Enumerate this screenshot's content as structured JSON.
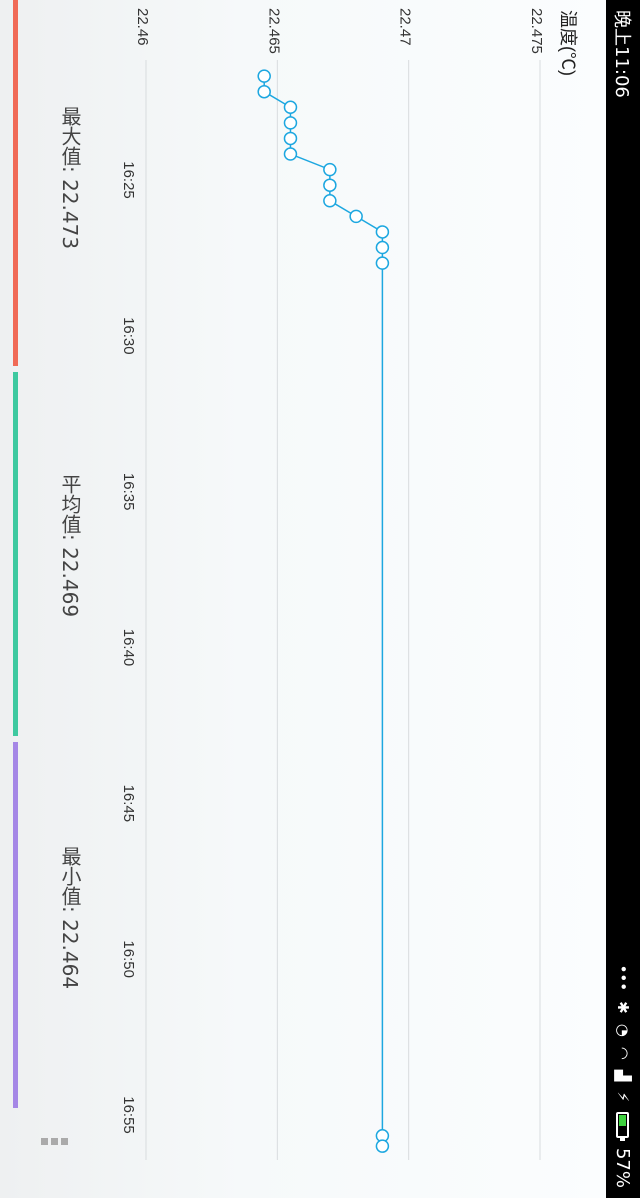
{
  "status_bar": {
    "time": "晚上11:06",
    "battery": "57%",
    "battery_level": 0.57,
    "icons": [
      "more-dots-icon",
      "bluetooth-icon",
      "alarm-icon",
      "wifi-icon",
      "signal-icon",
      "charging-icon"
    ]
  },
  "chart_data": {
    "type": "line",
    "ylabel": "温度(℃)",
    "y_ticks": [
      "22.475",
      "22.47",
      "22.465",
      "22.46"
    ],
    "ylim": [
      22.46,
      22.475
    ],
    "x_ticks": [
      "16:25",
      "16:30",
      "16:35",
      "16:40",
      "16:45",
      "16:50",
      "16:55"
    ],
    "xlim_minutes": [
      "16:21",
      "16:56"
    ],
    "series": [
      {
        "x": [
          "16:21:40",
          "16:22:10",
          "16:22:40",
          "16:23:10",
          "16:23:40",
          "16:24:10",
          "16:24:40",
          "16:25:10",
          "16:25:40",
          "16:26:10",
          "16:26:40",
          "16:27:10",
          "16:27:40",
          "16:55:40",
          "16:56:00"
        ],
        "values": [
          22.4645,
          22.4645,
          22.4655,
          22.4655,
          22.4655,
          22.4655,
          22.467,
          22.467,
          22.467,
          22.468,
          22.469,
          22.469,
          22.469,
          22.469,
          22.469
        ]
      }
    ],
    "grid": true,
    "line_color": "#1da7e0",
    "fill_color": "#bfe8fb"
  },
  "stats": {
    "max_label": "最大值: 22.473",
    "avg_label": "平均值: 22.469",
    "min_label": "最小值: 22.464",
    "max_color": "#f06a57",
    "avg_color": "#3ec9a0",
    "min_color": "#a587e6"
  },
  "menu_icon": "more-menu-icon"
}
